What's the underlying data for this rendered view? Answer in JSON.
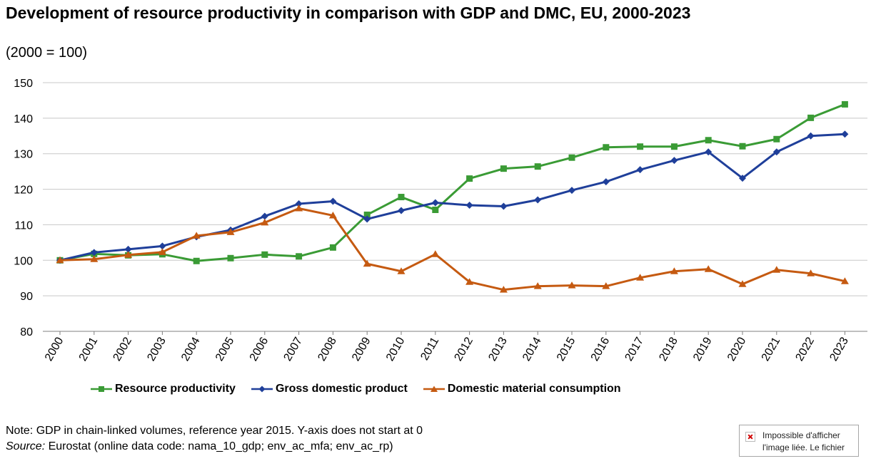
{
  "chart_data": {
    "type": "line",
    "title": "Development of resource productivity in comparison with GDP and DMC, EU, 2000-2023",
    "subtitle": "(2000 = 100)",
    "x": [
      "2000",
      "2001",
      "2002",
      "2003",
      "2004",
      "2005",
      "2006",
      "2007",
      "2008",
      "2009",
      "2010",
      "2011",
      "2012",
      "2013",
      "2014",
      "2015",
      "2016",
      "2017",
      "2018",
      "2019",
      "2020",
      "2021",
      "2022",
      "2023"
    ],
    "ylim": [
      80,
      150
    ],
    "yticks": [
      80,
      90,
      100,
      110,
      120,
      130,
      140,
      150
    ],
    "grid": true,
    "legend_position": "bottom",
    "series": [
      {
        "name": "Resource productivity",
        "color": "#3a9b35",
        "marker": "square",
        "values": [
          100.0,
          101.8,
          101.4,
          101.7,
          99.8,
          100.6,
          101.6,
          101.1,
          103.6,
          112.8,
          117.8,
          114.2,
          123.0,
          125.8,
          126.4,
          128.9,
          131.8,
          132.0,
          132.0,
          133.8,
          132.1,
          134.1,
          140.1,
          143.9
        ]
      },
      {
        "name": "Gross domestic product",
        "color": "#1f3f9a",
        "marker": "diamond",
        "values": [
          100.0,
          102.2,
          103.1,
          104.0,
          106.6,
          108.5,
          112.4,
          115.9,
          116.6,
          111.6,
          114.0,
          116.2,
          115.5,
          115.2,
          117.0,
          119.7,
          122.1,
          125.5,
          128.1,
          130.5,
          123.1,
          130.5,
          135.0,
          135.5
        ]
      },
      {
        "name": "Domestic material consumption",
        "color": "#c55a11",
        "marker": "triangle",
        "values": [
          100.0,
          100.3,
          101.5,
          102.3,
          106.9,
          107.9,
          110.6,
          114.6,
          112.6,
          99.0,
          96.9,
          101.7,
          93.9,
          91.7,
          92.7,
          92.9,
          92.7,
          95.1,
          96.9,
          97.5,
          93.3,
          97.3,
          96.3,
          94.1
        ]
      }
    ]
  },
  "note": {
    "text": "Note: GDP in chain-linked volumes, reference year 2015. Y-axis does not start at 0",
    "source_label": "Source:",
    "source_text": " Eurostat (online data code: nama_10_gdp; env_ac_mfa; env_ac_rp)"
  },
  "broken_image": {
    "text": "Impossible d'afficher l'image liée. Le fichier",
    "icon": "broken-image-x-icon"
  }
}
